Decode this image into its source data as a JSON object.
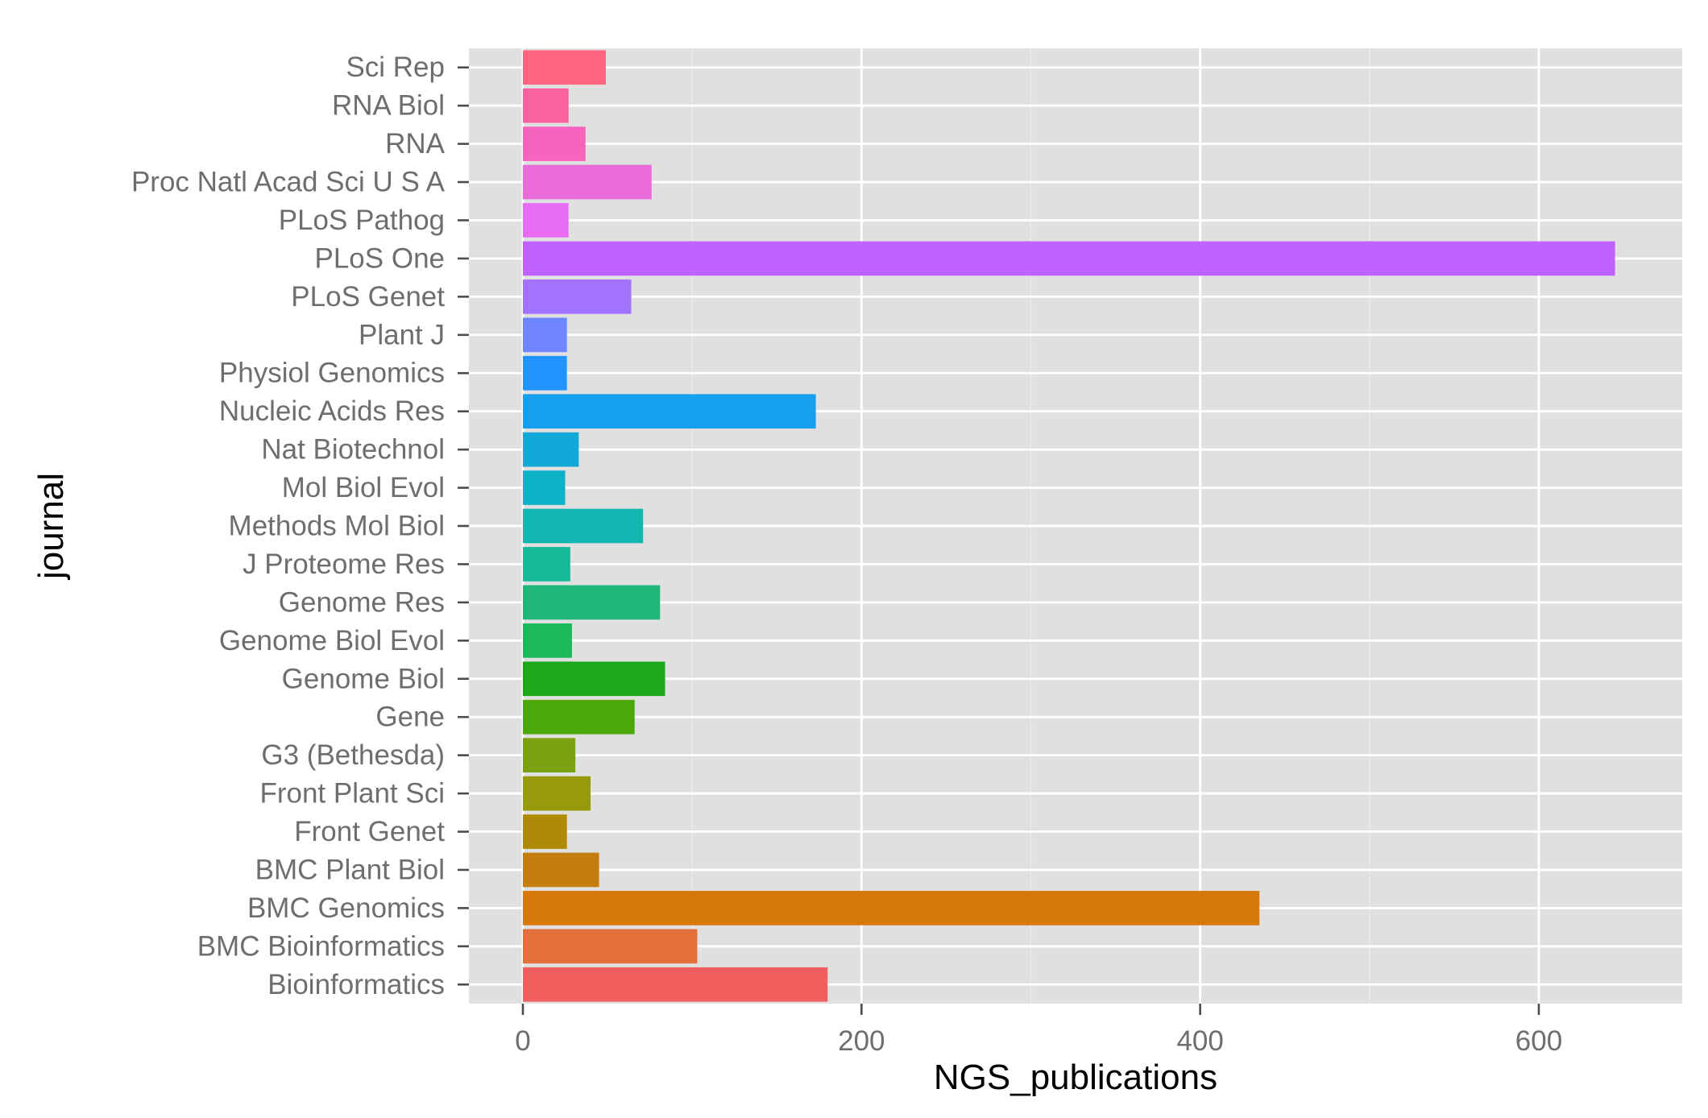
{
  "chart_data": {
    "type": "bar",
    "orientation": "horizontal",
    "xlabel": "NGS_publications",
    "ylabel": "journal",
    "xlim": [
      -32,
      680
    ],
    "xticks": [
      0,
      200,
      400,
      600
    ],
    "grid": true,
    "legend": "none",
    "categories": [
      "Sci Rep",
      "RNA Biol",
      "RNA",
      "Proc Natl Acad Sci U S A",
      "PLoS Pathog",
      "PLoS One",
      "PLoS Genet",
      "Plant J",
      "Physiol Genomics",
      "Nucleic Acids Res",
      "Nat Biotechnol",
      "Mol Biol Evol",
      "Methods Mol Biol",
      "J Proteome Res",
      "Genome Res",
      "Genome Biol Evol",
      "Genome Biol",
      "Gene",
      "G3 (Bethesda)",
      "Front Plant Sci",
      "Front Genet",
      "BMC Plant Biol",
      "BMC Genomics",
      "BMC Bioinformatics",
      "Bioinformatics"
    ],
    "values": [
      49,
      27,
      37,
      76,
      27,
      645,
      64,
      26,
      26,
      173,
      33,
      25,
      71,
      28,
      81,
      29,
      84,
      66,
      31,
      40,
      26,
      45,
      435,
      103,
      180
    ],
    "colors": [
      "#FF6480",
      "#FC61A0",
      "#F564BD",
      "#E96BD7",
      "#E76BF3",
      "#C161FF",
      "#A273FF",
      "#6E86FF",
      "#2294FF",
      "#16A0EF",
      "#12A8D8",
      "#0EB1C8",
      "#12B5B0",
      "#16B898",
      "#20B67A",
      "#1CB95A",
      "#1BA81B",
      "#4CA708",
      "#7AA210",
      "#979A0A",
      "#AE8A06",
      "#C47D0F",
      "#D77908",
      "#E3703A",
      "#F1605F"
    ]
  }
}
